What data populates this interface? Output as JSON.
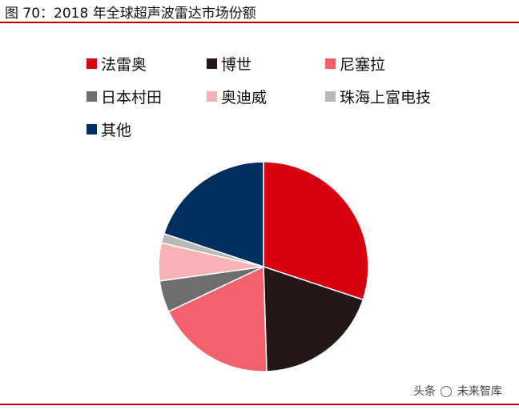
{
  "figure": {
    "title": "图 70：2018 年全球超声波雷达市场份额"
  },
  "colors": {
    "rule": "#C00000"
  },
  "chart_data": {
    "type": "pie",
    "title": "图 70：2018 年全球超声波雷达市场份额",
    "start_angle_deg": 0,
    "direction": "clockwise",
    "legend": "top",
    "slices": [
      {
        "name": "法雷奥",
        "value": 31,
        "color": "#D7000F"
      },
      {
        "name": "博世",
        "value": 20,
        "color": "#231815"
      },
      {
        "name": "尼塞拉",
        "value": 19,
        "color": "#F2616C"
      },
      {
        "name": "日本村田",
        "value": 5,
        "color": "#6E6E6E"
      },
      {
        "name": "奥迪威",
        "value": 6,
        "color": "#F9B3B6"
      },
      {
        "name": "珠海上富电技",
        "value": 1.5,
        "color": "#B8B8B8"
      },
      {
        "name": "其他",
        "value": 20.5,
        "color": "#002E5E"
      }
    ]
  },
  "watermark": {
    "text_left": "头条",
    "text_right": "未来智库"
  }
}
